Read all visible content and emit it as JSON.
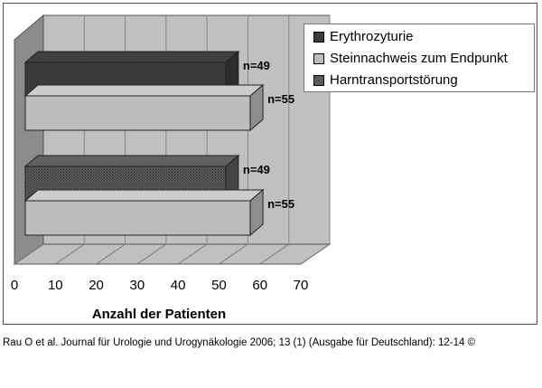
{
  "chart_data": {
    "type": "bar",
    "orientation": "horizontal",
    "xlabel": "Anzahl der Patienten",
    "xlim": [
      0,
      70
    ],
    "xticks": [
      0,
      10,
      20,
      30,
      40,
      50,
      60,
      70
    ],
    "grid": true,
    "legend_position": "top-right",
    "series": [
      {
        "name": "Erythrozyturie",
        "color": "#3a3a3a"
      },
      {
        "name": "Steinnachweis zum Endpunkt",
        "color": "#bdbdbd"
      },
      {
        "name": "Harntransportstörung",
        "color": "#5a5a5a"
      }
    ],
    "bars": [
      {
        "series": "Erythrozyturie",
        "group": 1,
        "value": 49,
        "label": "n=49"
      },
      {
        "series": "Steinnachweis zum Endpunkt",
        "group": 1,
        "value": 55,
        "label": "n=55"
      },
      {
        "series": "Harntransportstörung",
        "group": 2,
        "value": 49,
        "label": "n=49"
      },
      {
        "series": "Steinnachweis zum Endpunkt",
        "group": 2,
        "value": 55,
        "label": "n=55"
      }
    ]
  },
  "caption": "Rau O et al. Journal für Urologie und Urogynäkologie 2006; 13 (1) (Ausgabe für Deutschland): 12-14 ©"
}
